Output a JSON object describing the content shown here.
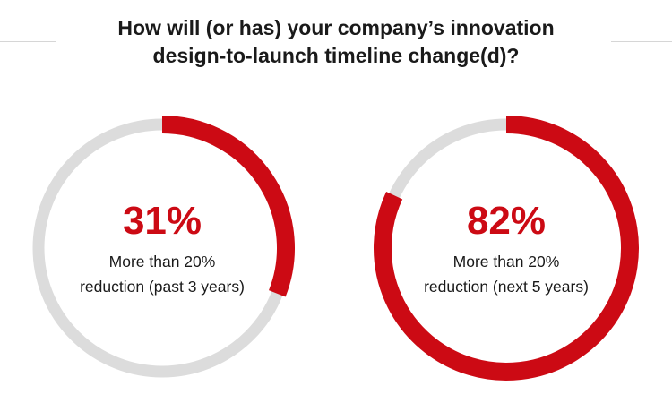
{
  "title": {
    "line1": "How will (or has) your company’s innovation",
    "line2": "design-to-launch timeline change(d)?"
  },
  "colors": {
    "accent": "#cc0a14",
    "track": "#dcdcdc",
    "text": "#1a1a1a"
  },
  "chart_data": [
    {
      "type": "pie",
      "value": 31,
      "value_label": "31%",
      "caption_line1": "More than 20%",
      "caption_line2": "reduction (past 3 years)"
    },
    {
      "type": "pie",
      "value": 82,
      "value_label": "82%",
      "caption_line1": "More than 20%",
      "caption_line2": "reduction (next 5 years)"
    }
  ]
}
